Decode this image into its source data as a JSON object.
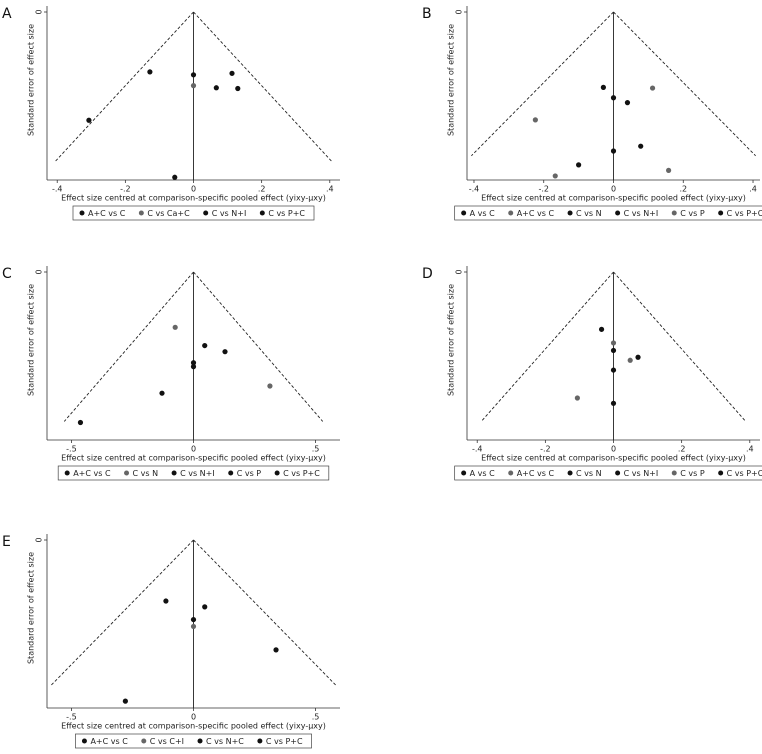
{
  "chart_data": [
    {
      "type": "scatter",
      "label": "A",
      "x_label": "Effect size centred at comparison-specific pooled effect (yixy-μxy)",
      "y_label": "Standard error of effect size",
      "xlim": [
        -0.43,
        0.43
      ],
      "ylim": [
        0,
        0.23
      ],
      "y_reversed": true,
      "xticks": [
        {
          "value": -0.4,
          "label": "-.4"
        },
        {
          "value": -0.2,
          "label": "-.2"
        },
        0,
        {
          "value": 0.2,
          "label": ".2"
        },
        {
          "value": 0.4,
          "label": ".4"
        }
      ],
      "yticks": [
        0
      ],
      "series": [
        {
          "name": "A+C vs C",
          "color": "#111111",
          "x": [
            -0.307,
            -0.128
          ],
          "y": [
            0.15,
            0.083
          ]
        },
        {
          "name": "C vs Ca+C",
          "color": "#666666",
          "x": [
            0
          ],
          "y": [
            0.102
          ]
        },
        {
          "name": "C vs N+I",
          "color": "#111111",
          "x": [
            0,
            0.067,
            -0.055
          ],
          "y": [
            0.087,
            0.105,
            0.229
          ]
        },
        {
          "name": "C vs P+C",
          "color": "#111111",
          "x": [
            0.113,
            0.13
          ],
          "y": [
            0.085,
            0.106
          ]
        }
      ]
    },
    {
      "type": "scatter",
      "label": "B",
      "x_label": "Effect size centred at comparison-specific pooled effect (yixy-μxy)",
      "y_label": "Standard error of effect size",
      "xlim": [
        -0.42,
        0.42
      ],
      "ylim": [
        0,
        0.24
      ],
      "y_reversed": true,
      "xticks": [
        {
          "value": -0.4,
          "label": "-.4"
        },
        {
          "value": -0.2,
          "label": "-.2"
        },
        0,
        {
          "value": 0.2,
          "label": ".2"
        },
        {
          "value": 0.4,
          "label": ".4"
        }
      ],
      "yticks": [
        0
      ],
      "series": [
        {
          "name": "A vs C",
          "color": "#111111",
          "x": [
            -0.1
          ],
          "y": [
            0.221
          ]
        },
        {
          "name": "A+C vs C",
          "color": "#666666",
          "x": [
            -0.224,
            -0.167
          ],
          "y": [
            0.156,
            0.237
          ]
        },
        {
          "name": "C vs N",
          "color": "#111111",
          "x": [
            0,
            0
          ],
          "y": [
            0.124,
            0.201
          ]
        },
        {
          "name": "C vs N+I",
          "color": "#111111",
          "x": [
            -0.029,
            0.04
          ],
          "y": [
            0.109,
            0.131
          ]
        },
        {
          "name": "C vs P",
          "color": "#666666",
          "x": [
            0.112,
            0.158
          ],
          "y": [
            0.11,
            0.229
          ]
        },
        {
          "name": "C vs P+C",
          "color": "#111111",
          "x": [
            0.078
          ],
          "y": [
            0.194
          ]
        }
      ]
    },
    {
      "type": "scatter",
      "label": "C",
      "x_label": "Effect size centred at comparison-specific pooled effect (yixy-μxy)",
      "y_label": "Standard error of effect size",
      "xlim": [
        -0.6,
        0.6
      ],
      "ylim": [
        0,
        0.3
      ],
      "y_reversed": true,
      "xticks": [
        {
          "value": -0.5,
          "label": "-.5"
        },
        0,
        {
          "value": 0.5,
          "label": ".5"
        }
      ],
      "yticks": [
        0
      ],
      "series": [
        {
          "name": "A+C vs C",
          "color": "#111111",
          "x": [
            -0.463,
            -0.129
          ],
          "y": [
            0.272,
            0.219
          ]
        },
        {
          "name": "C vs N",
          "color": "#666666",
          "x": [
            -0.075,
            0.313
          ],
          "y": [
            0.1,
            0.206
          ]
        },
        {
          "name": "C vs N+I",
          "color": "#111111",
          "x": [
            0,
            0
          ],
          "y": [
            0.164,
            0.171
          ]
        },
        {
          "name": "C vs P",
          "color": "#111111",
          "x": [
            0.046
          ],
          "y": [
            0.133
          ]
        },
        {
          "name": "C vs P+C",
          "color": "#111111",
          "x": [
            0.129
          ],
          "y": [
            0.144
          ]
        }
      ]
    },
    {
      "type": "scatter",
      "label": "D",
      "x_label": "Effect size centred at comparison-specific pooled effect (yixy-μxy)",
      "y_label": "Standard error of effect size",
      "xlim": [
        -0.43,
        0.43
      ],
      "ylim": [
        0,
        0.22
      ],
      "y_reversed": true,
      "xticks": [
        {
          "value": -0.4,
          "label": "-.4"
        },
        {
          "value": -0.2,
          "label": "-.2"
        },
        0,
        {
          "value": 0.2,
          "label": ".2"
        },
        {
          "value": 0.4,
          "label": ".4"
        }
      ],
      "yticks": [
        0
      ],
      "series": [
        {
          "name": "A vs C",
          "color": "#111111",
          "x": [
            -0.035
          ],
          "y": [
            0.076
          ]
        },
        {
          "name": "A+C vs C",
          "color": "#666666",
          "x": [
            0,
            -0.106
          ],
          "y": [
            0.094,
            0.167
          ]
        },
        {
          "name": "C vs N",
          "color": "#111111",
          "x": [
            0,
            0
          ],
          "y": [
            0.104,
            0.13
          ]
        },
        {
          "name": "C vs N+I",
          "color": "#111111",
          "x": [
            0.072
          ],
          "y": [
            0.113
          ]
        },
        {
          "name": "C vs P",
          "color": "#666666",
          "x": [
            0.049
          ],
          "y": [
            0.117
          ]
        },
        {
          "name": "C vs P+C",
          "color": "#111111",
          "x": [
            0
          ],
          "y": [
            0.174
          ]
        }
      ]
    },
    {
      "type": "scatter",
      "label": "E",
      "x_label": "Effect size centred at comparison-specific pooled effect (yixy-μxy)",
      "y_label": "Standard error of effect size",
      "xlim": [
        -0.6,
        0.6
      ],
      "ylim": [
        0,
        0.34
      ],
      "y_reversed": true,
      "xticks": [
        {
          "value": -0.5,
          "label": "-.5"
        },
        0,
        {
          "value": 0.5,
          "label": ".5"
        }
      ],
      "yticks": [
        0
      ],
      "series": [
        {
          "name": "A+C vs C",
          "color": "#111111",
          "x": [
            -0.113,
            -0.279
          ],
          "y": [
            0.125,
            0.33
          ]
        },
        {
          "name": "C vs C+I",
          "color": "#666666",
          "x": [
            0
          ],
          "y": [
            0.177
          ]
        },
        {
          "name": "C vs N+C",
          "color": "#111111",
          "x": [
            0.046,
            0
          ],
          "y": [
            0.137,
            0.163
          ]
        },
        {
          "name": "C vs P+C",
          "color": "#111111",
          "x": [
            0.338
          ],
          "y": [
            0.225
          ]
        }
      ]
    }
  ]
}
